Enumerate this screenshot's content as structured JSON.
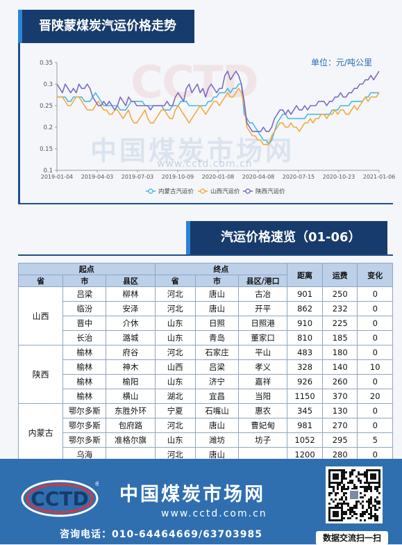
{
  "header": {
    "title": "晋陕蒙煤炭汽运价格走势"
  },
  "unit": "单位：元/吨公里",
  "watermark": {
    "logo": "CCTD",
    "text": "中国煤炭市场网",
    "url": "www.cctd.com.cn"
  },
  "chart_data": {
    "type": "line",
    "x_ticks": [
      "2019-01-04",
      "2019-04-03",
      "2019-07-03",
      "2019-10-09",
      "2020-01-08",
      "2020-04-08",
      "2020-07-15",
      "2020-10-23",
      "2021-01-06"
    ],
    "y_ticks": [
      "0.35",
      "0.3",
      "0.25",
      "0.2",
      "0.15",
      "0.1"
    ],
    "ylim": [
      0.1,
      0.35
    ],
    "grid": false,
    "legend": "bottom",
    "series": [
      {
        "name": "内蒙古汽运价",
        "color": "#4bb8e2",
        "values": [
          0.27,
          0.27,
          0.27,
          0.27,
          0.26,
          0.26,
          0.27,
          0.27,
          0.27,
          0.27,
          0.26,
          0.26,
          0.26,
          0.27,
          0.28,
          0.27,
          0.26,
          0.25,
          0.25,
          0.25,
          0.25,
          0.25,
          0.25,
          0.24,
          0.24,
          0.24,
          0.25,
          0.26,
          0.26,
          0.26,
          0.26,
          0.26,
          0.25,
          0.25,
          0.25,
          0.25,
          0.25,
          0.25,
          0.25,
          0.24,
          0.24,
          0.24,
          0.25,
          0.25,
          0.25,
          0.26,
          0.26,
          0.26,
          0.25,
          0.25,
          0.25,
          0.25,
          0.25,
          0.25,
          0.25,
          0.26,
          0.26,
          0.27,
          0.27,
          0.28,
          0.28,
          0.28,
          0.29,
          0.28,
          0.29,
          0.29,
          0.3,
          0.3,
          0.23,
          0.22,
          0.21,
          0.21,
          0.2,
          0.19,
          0.18,
          0.17,
          0.17,
          0.16,
          0.17,
          0.19,
          0.21,
          0.22,
          0.23,
          0.23,
          0.22,
          0.22,
          0.22,
          0.22,
          0.22,
          0.22,
          0.22,
          0.23,
          0.23,
          0.23,
          0.23,
          0.23,
          0.23,
          0.23,
          0.23,
          0.23,
          0.24,
          0.24,
          0.24,
          0.25,
          0.25,
          0.25,
          0.25,
          0.26,
          0.26,
          0.26,
          0.26,
          0.26,
          0.27,
          0.27,
          0.28,
          0.28,
          0.28,
          0.28
        ]
      },
      {
        "name": "山西汽运价",
        "color": "#f4a93b",
        "values": [
          0.27,
          0.27,
          0.27,
          0.26,
          0.25,
          0.25,
          0.26,
          0.27,
          0.27,
          0.26,
          0.25,
          0.24,
          0.24,
          0.24,
          0.25,
          0.26,
          0.25,
          0.24,
          0.24,
          0.23,
          0.23,
          0.24,
          0.24,
          0.23,
          0.22,
          0.23,
          0.24,
          0.22,
          0.21,
          0.21,
          0.22,
          0.23,
          0.24,
          0.22,
          0.21,
          0.21,
          0.22,
          0.23,
          0.24,
          0.24,
          0.23,
          0.22,
          0.22,
          0.24,
          0.25,
          0.24,
          0.23,
          0.22,
          0.21,
          0.22,
          0.23,
          0.24,
          0.25,
          0.24,
          0.23,
          0.24,
          0.25,
          0.26,
          0.26,
          0.25,
          0.26,
          0.27,
          0.28,
          0.27,
          0.27,
          0.28,
          0.29,
          0.28,
          0.25,
          0.2,
          0.19,
          0.18,
          0.18,
          0.17,
          0.17,
          0.16,
          0.16,
          0.16,
          0.18,
          0.19,
          0.2,
          0.21,
          0.21,
          0.2,
          0.2,
          0.21,
          0.2,
          0.2,
          0.19,
          0.2,
          0.21,
          0.21,
          0.22,
          0.21,
          0.22,
          0.22,
          0.23,
          0.23,
          0.22,
          0.23,
          0.23,
          0.24,
          0.23,
          0.24,
          0.24,
          0.23,
          0.23,
          0.24,
          0.25,
          0.24,
          0.25,
          0.26,
          0.27,
          0.26,
          0.27,
          0.27,
          0.27,
          0.28
        ]
      },
      {
        "name": "陕西汽运价",
        "color": "#7c6bc0",
        "values": [
          0.3,
          0.29,
          0.28,
          0.3,
          0.29,
          0.28,
          0.29,
          0.28,
          0.3,
          0.29,
          0.29,
          0.3,
          0.29,
          0.27,
          0.26,
          0.25,
          0.25,
          0.26,
          0.25,
          0.26,
          0.25,
          0.24,
          0.25,
          0.27,
          0.26,
          0.25,
          0.27,
          0.26,
          0.26,
          0.25,
          0.25,
          0.25,
          0.25,
          0.25,
          0.24,
          0.25,
          0.25,
          0.25,
          0.25,
          0.25,
          0.26,
          0.25,
          0.25,
          0.27,
          0.28,
          0.27,
          0.26,
          0.29,
          0.3,
          0.28,
          0.29,
          0.3,
          0.28,
          0.29,
          0.27,
          0.29,
          0.3,
          0.29,
          0.28,
          0.29,
          0.29,
          0.32,
          0.33,
          0.31,
          0.32,
          0.33,
          0.32,
          0.3,
          0.26,
          0.21,
          0.2,
          0.19,
          0.19,
          0.19,
          0.19,
          0.2,
          0.19,
          0.19,
          0.2,
          0.22,
          0.23,
          0.24,
          0.24,
          0.23,
          0.24,
          0.23,
          0.24,
          0.25,
          0.24,
          0.24,
          0.25,
          0.24,
          0.25,
          0.25,
          0.25,
          0.26,
          0.26,
          0.26,
          0.25,
          0.26,
          0.26,
          0.27,
          0.27,
          0.28,
          0.27,
          0.27,
          0.28,
          0.28,
          0.29,
          0.29,
          0.3,
          0.3,
          0.31,
          0.31,
          0.32,
          0.31,
          0.32,
          0.33
        ]
      }
    ]
  },
  "section2": {
    "title": "汽运价格速览（01-06）"
  },
  "table": {
    "group_headers": {
      "origin": "起点",
      "dest": "终点",
      "distance": "距离",
      "fare": "运费",
      "change": "变化"
    },
    "sub_headers": {
      "prov": "省",
      "city": "市",
      "district": "县区",
      "dprov": "省",
      "dcity": "市",
      "ddistrict": "县区/港口"
    },
    "groups": [
      {
        "province": "山西",
        "rows": [
          [
            "吕梁",
            "柳林",
            "河北",
            "唐山",
            "古冶",
            "901",
            "250",
            "0"
          ],
          [
            "临汾",
            "安泽",
            "河北",
            "唐山",
            "开平",
            "862",
            "232",
            "0"
          ],
          [
            "晋中",
            "介休",
            "山东",
            "日照",
            "日照港",
            "910",
            "225",
            "0"
          ],
          [
            "长治",
            "潞城",
            "山东",
            "青岛",
            "董家口",
            "810",
            "185",
            "0"
          ]
        ]
      },
      {
        "province": "陕西",
        "rows": [
          [
            "榆林",
            "府谷",
            "河北",
            "石家庄",
            "平山",
            "483",
            "180",
            "0"
          ],
          [
            "榆林",
            "神木",
            "山西",
            "吕梁",
            "孝义",
            "328",
            "140",
            "10"
          ],
          [
            "榆林",
            "榆阳",
            "山东",
            "济宁",
            "嘉祥",
            "926",
            "260",
            "0"
          ],
          [
            "榆林",
            "横山",
            "湖北",
            "宜昌",
            "当阳",
            "1150",
            "370",
            "20"
          ]
        ]
      },
      {
        "province": "内蒙古",
        "rows": [
          [
            "鄂尔多斯",
            "东胜外环",
            "宁夏",
            "石嘴山",
            "惠农",
            "345",
            "130",
            "0"
          ],
          [
            "鄂尔多斯",
            "包府路",
            "河北",
            "唐山",
            "曹妃甸",
            "981",
            "270",
            "0"
          ],
          [
            "鄂尔多斯",
            "准格尔旗",
            "山东",
            "潍坊",
            "坊子",
            "1052",
            "295",
            "5"
          ],
          [
            "乌海",
            "",
            "河北",
            "唐山",
            "",
            "1200",
            "280",
            "0"
          ]
        ]
      }
    ]
  },
  "footer": {
    "logo_text": "CCTD",
    "logo_mark": "®",
    "brand": "中国煤炭市场网",
    "url": "www.cctd.com.cn",
    "phone": "咨询电话：010-64464669/63703985",
    "qr_caption": "数据交流扫一扫"
  }
}
